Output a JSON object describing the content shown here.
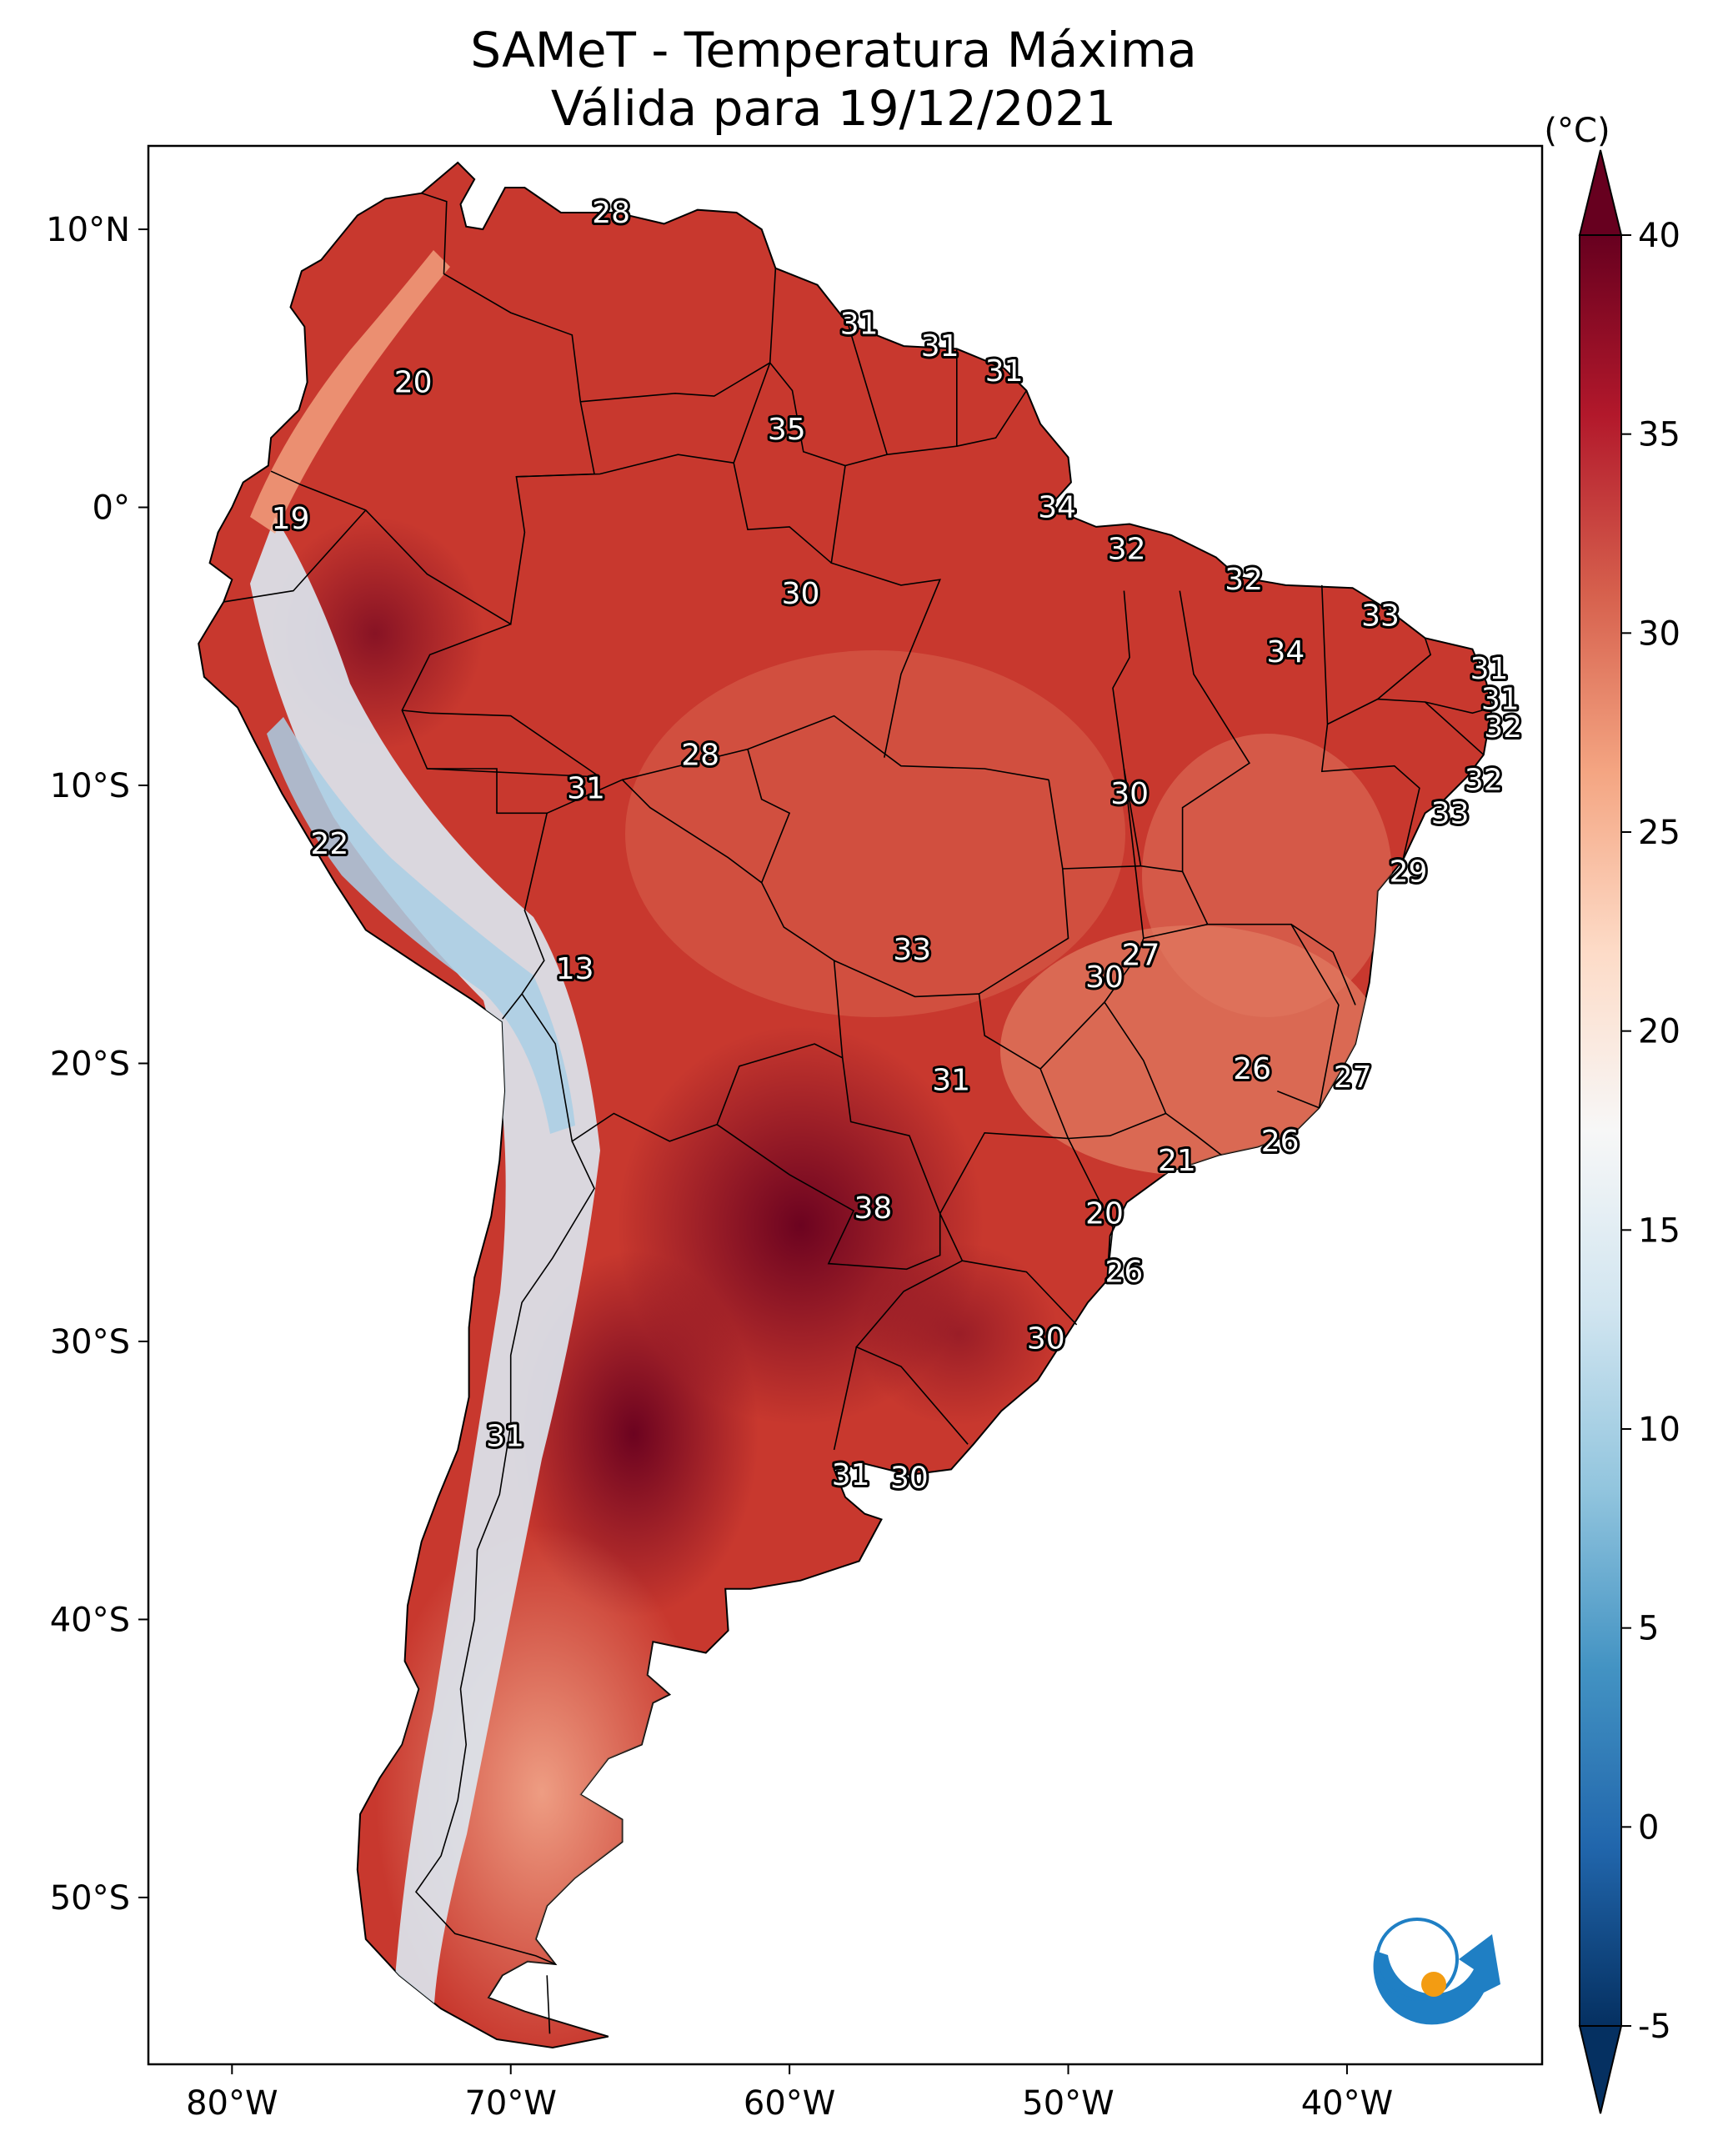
{
  "title_line1": "SAMeT - Temperatura Máxima",
  "title_line2": "Válida para 19/12/2021",
  "colorbar": {
    "unit": "(°C)",
    "min": -5,
    "max": 40,
    "ticks": [
      "40",
      "35",
      "30",
      "25",
      "20",
      "15",
      "10",
      "5",
      "0",
      "-5"
    ],
    "colors": [
      "#053061",
      "#2166ac",
      "#4393c3",
      "#92c5de",
      "#d1e5f0",
      "#f7f7f7",
      "#fddbc7",
      "#f4a582",
      "#d6604d",
      "#b2182b",
      "#67001f"
    ]
  },
  "map": {
    "lon_ticks": [
      "80°W",
      "70°W",
      "60°W",
      "50°W",
      "40°W"
    ],
    "lat_ticks": [
      "10°N",
      "0°",
      "10°S",
      "20°S",
      "30°S",
      "40°S",
      "50°S"
    ],
    "lon_range": [
      -83,
      -33
    ],
    "lat_range": [
      13,
      -56
    ],
    "colors": {
      "land_hot": "#c0302b",
      "land_very_hot": "#7a0b1f",
      "land_mild": "#e27a62",
      "andes_cool": "#d8e8f2",
      "andes_cold": "#a9cfe5",
      "ocean": "#ffffff",
      "border": "#000000"
    }
  },
  "labels": [
    {
      "text": "28",
      "lon": -66.4,
      "lat": 10.6
    },
    {
      "text": "20",
      "lon": -73.5,
      "lat": 4.5
    },
    {
      "text": "31",
      "lon": -57.5,
      "lat": 6.6
    },
    {
      "text": "31",
      "lon": -54.6,
      "lat": 5.8
    },
    {
      "text": "31",
      "lon": -52.3,
      "lat": 4.9
    },
    {
      "text": "35",
      "lon": -60.1,
      "lat": 2.8
    },
    {
      "text": "19",
      "lon": -77.9,
      "lat": -0.4
    },
    {
      "text": "34",
      "lon": -50.4,
      "lat": 0.0
    },
    {
      "text": "32",
      "lon": -47.9,
      "lat": -1.5
    },
    {
      "text": "32",
      "lon": -43.7,
      "lat": -2.6
    },
    {
      "text": "30",
      "lon": -59.6,
      "lat": -3.1
    },
    {
      "text": "33",
      "lon": -38.8,
      "lat": -3.9
    },
    {
      "text": "34",
      "lon": -42.2,
      "lat": -5.2
    },
    {
      "text": "31",
      "lon": -34.9,
      "lat": -5.8
    },
    {
      "text": "31",
      "lon": -34.5,
      "lat": -6.9
    },
    {
      "text": "32",
      "lon": -34.4,
      "lat": -7.9
    },
    {
      "text": "28",
      "lon": -63.2,
      "lat": -8.9
    },
    {
      "text": "31",
      "lon": -67.3,
      "lat": -10.1
    },
    {
      "text": "30",
      "lon": -47.8,
      "lat": -10.3
    },
    {
      "text": "32",
      "lon": -35.1,
      "lat": -9.8
    },
    {
      "text": "33",
      "lon": -36.3,
      "lat": -11.0
    },
    {
      "text": "22",
      "lon": -76.5,
      "lat": -12.1
    },
    {
      "text": "29",
      "lon": -37.8,
      "lat": -13.1
    },
    {
      "text": "33",
      "lon": -55.6,
      "lat": -15.9
    },
    {
      "text": "27",
      "lon": -47.4,
      "lat": -16.1
    },
    {
      "text": "13",
      "lon": -67.7,
      "lat": -16.6
    },
    {
      "text": "30",
      "lon": -48.7,
      "lat": -16.9
    },
    {
      "text": "26",
      "lon": -43.4,
      "lat": -20.2
    },
    {
      "text": "27",
      "lon": -39.8,
      "lat": -20.5
    },
    {
      "text": "31",
      "lon": -54.2,
      "lat": -20.6
    },
    {
      "text": "26",
      "lon": -42.4,
      "lat": -22.8
    },
    {
      "text": "21",
      "lon": -46.1,
      "lat": -23.5
    },
    {
      "text": "38",
      "lon": -57.0,
      "lat": -25.2
    },
    {
      "text": "20",
      "lon": -48.7,
      "lat": -25.4
    },
    {
      "text": "26",
      "lon": -48.0,
      "lat": -27.5
    },
    {
      "text": "30",
      "lon": -50.8,
      "lat": -29.9
    },
    {
      "text": "31",
      "lon": -70.2,
      "lat": -33.4
    },
    {
      "text": "31",
      "lon": -57.8,
      "lat": -34.8
    },
    {
      "text": "30",
      "lon": -55.7,
      "lat": -34.9
    }
  ]
}
